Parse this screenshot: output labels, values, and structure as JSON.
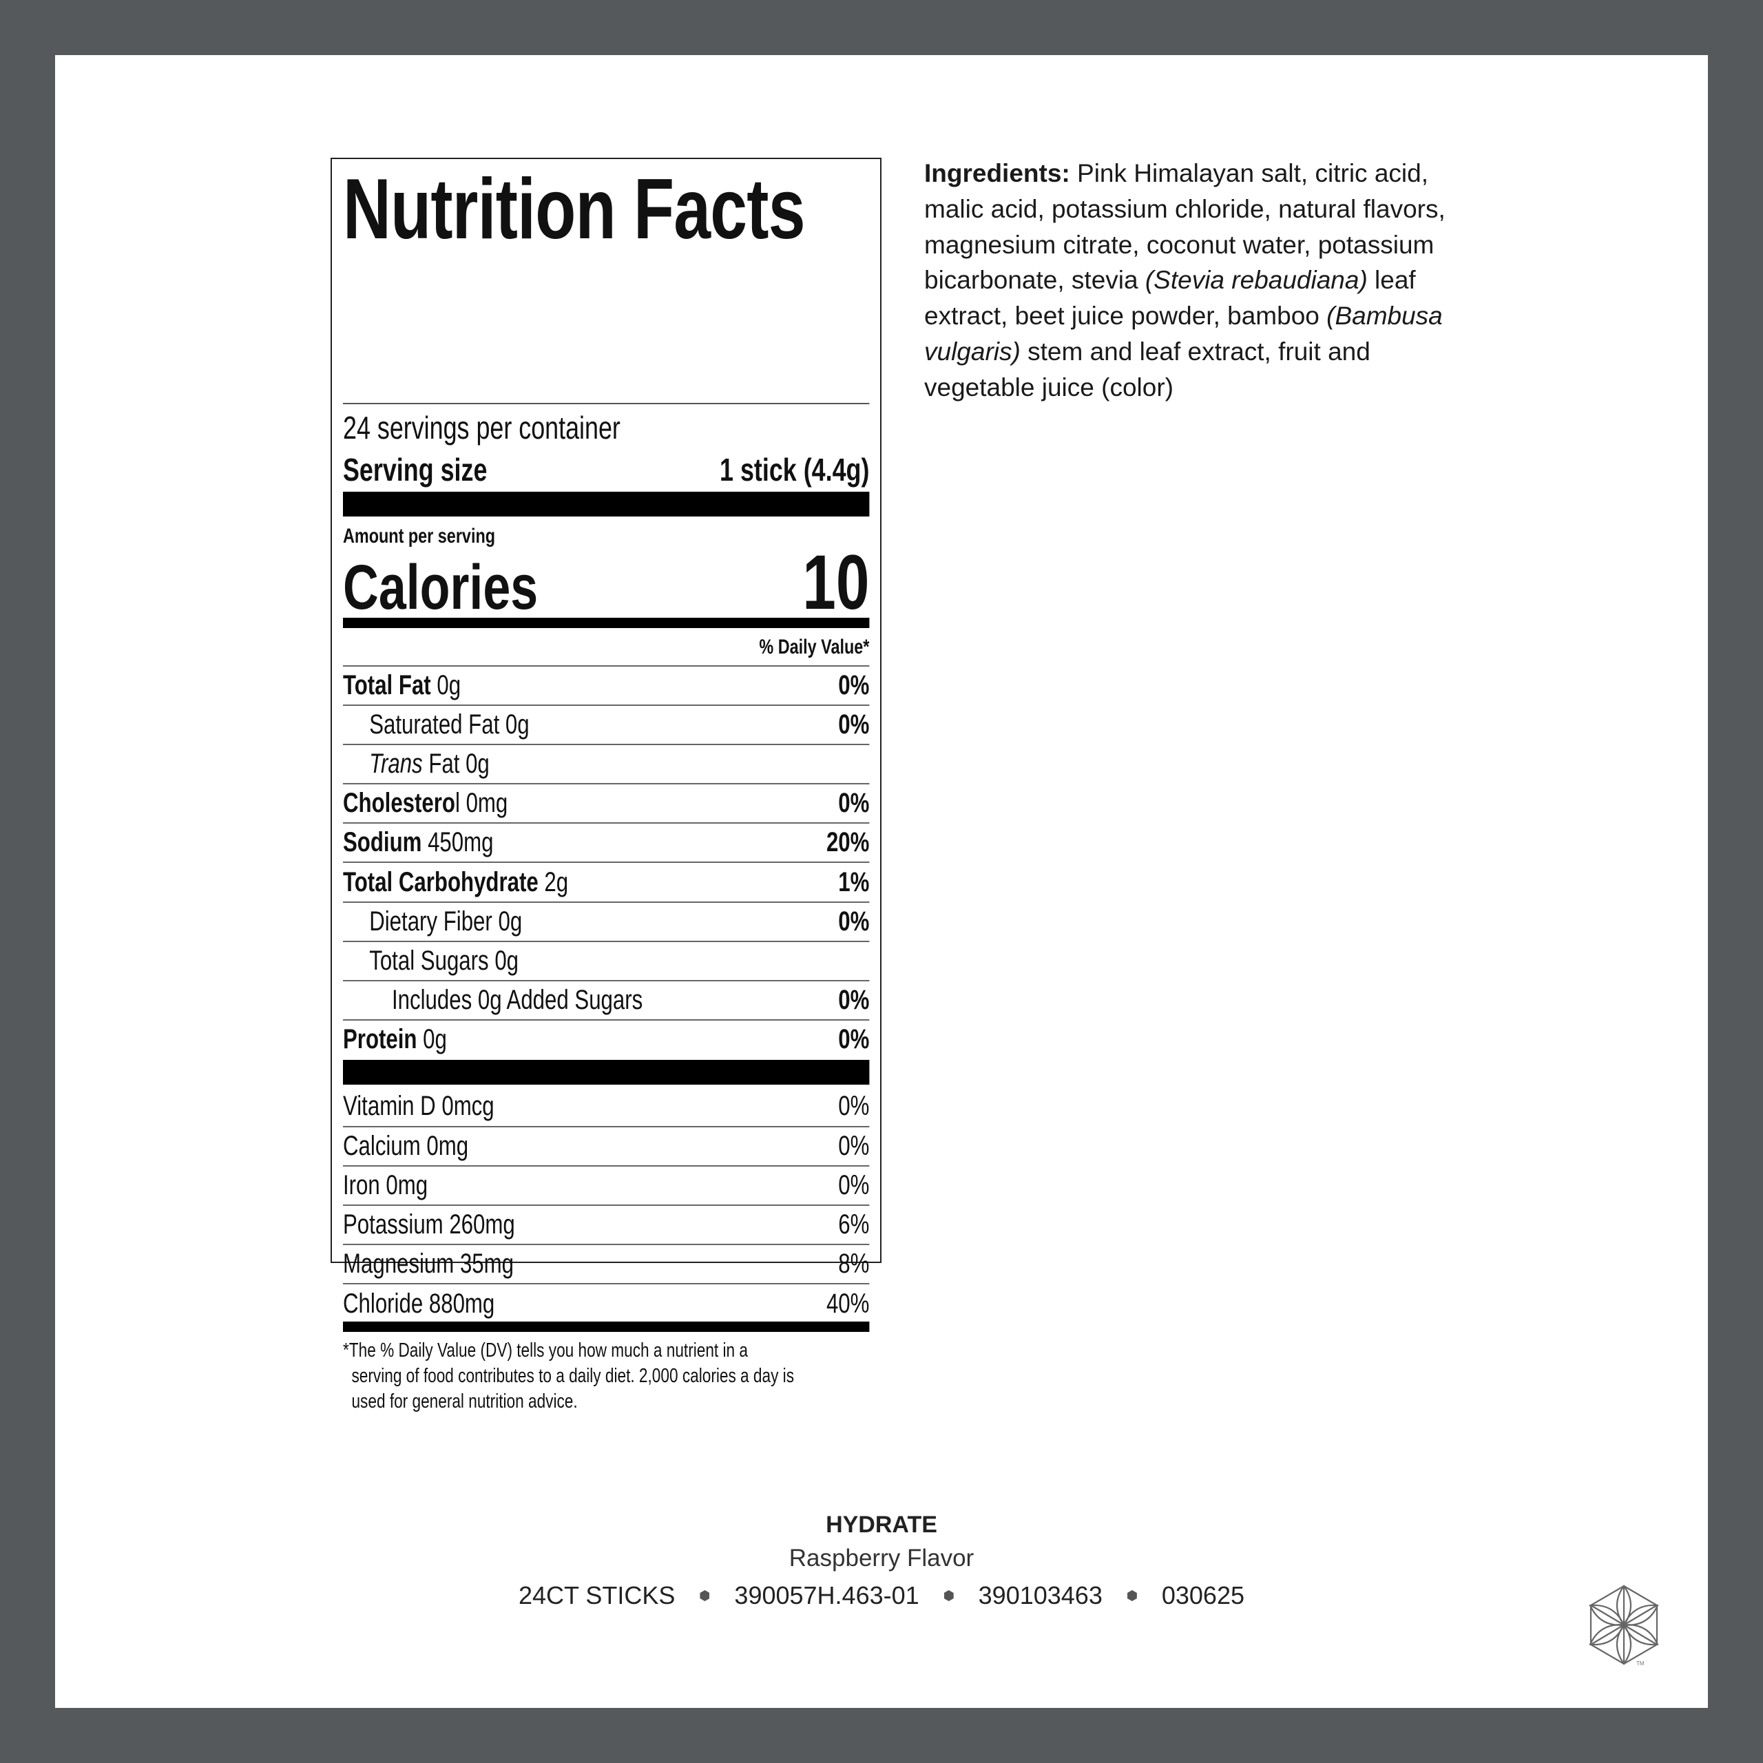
{
  "label": {
    "title": "Nutrition Facts",
    "servings_per_container": "24 servings per container",
    "serving_size_label": "Serving size",
    "serving_size_value": "1 stick (4.4g)",
    "amount_per_serving": "Amount per serving",
    "calories_label": "Calories",
    "calories_value": "10",
    "daily_value_header": "% Daily Value*",
    "nutrients": [
      {
        "name": "Total Fat",
        "amount": " 0g",
        "dv": "0%"
      },
      {
        "name": "Saturated Fat 0g",
        "amount": "",
        "dv": "0%"
      },
      {
        "name": "Trans",
        "amount": " Fat 0g",
        "dv": ""
      },
      {
        "name": "Cholestero",
        "amount": "l 0mg",
        "dv": "0%"
      },
      {
        "name": "Sodium",
        "amount": " 450mg",
        "dv": "20%"
      },
      {
        "name": "Total Carbohydrate",
        "amount": " 2g",
        "dv": "1%"
      },
      {
        "name": "Dietary Fiber 0g",
        "amount": "",
        "dv": "0%"
      },
      {
        "name": "Total Sugars 0g",
        "amount": "",
        "dv": ""
      },
      {
        "name": "Includes 0g Added Sugars",
        "amount": "",
        "dv": "0%"
      },
      {
        "name": "Protein",
        "amount": " 0g",
        "dv": "0%"
      }
    ],
    "vitamins": [
      {
        "name": "Vitamin D 0mcg",
        "dv": "0%"
      },
      {
        "name": "Calcium 0mg",
        "dv": "0%"
      },
      {
        "name": "Iron 0mg",
        "dv": "0%"
      },
      {
        "name": "Potassium 260mg",
        "dv": "6%"
      },
      {
        "name": "Magnesium 35mg",
        "dv": "8%"
      },
      {
        "name": "Chloride 880mg",
        "dv": "40%"
      }
    ],
    "footnote": [
      "*The % Daily Value (DV) tells you how much a nutrient in a",
      "serving of food contributes to a daily diet. 2,000 calories a day is",
      "used for general nutrition advice."
    ]
  },
  "ingredients": {
    "heading": "Ingredients:",
    "l1": " Pink Himalayan salt, citric acid,",
    "l2": "malic acid, potassium chloride, natural flavors,",
    "l3": "magnesium citrate, coconut water, potassium",
    "l4a": "bicarbonate, stevia ",
    "l4b": "(Stevia rebaudiana)",
    "l4c": " leaf",
    "l5a": "extract, beet juice powder, bamboo ",
    "l5b": "(Bambusa",
    "l6a": "vulgaris)",
    "l6b": " stem and leaf extract, fruit and",
    "l7": "vegetable juice (color)"
  },
  "footer": {
    "product": "HYDRATE",
    "flavor": "Raspberry Flavor",
    "codes": [
      "24CT STICKS",
      "390057H.463-01",
      "390103463",
      "030625"
    ]
  },
  "colors": {
    "frame": "#55595c",
    "logo": "#666666"
  },
  "logo": {
    "icon": "seed-of-life-hexagon-icon",
    "mark": "TM"
  }
}
